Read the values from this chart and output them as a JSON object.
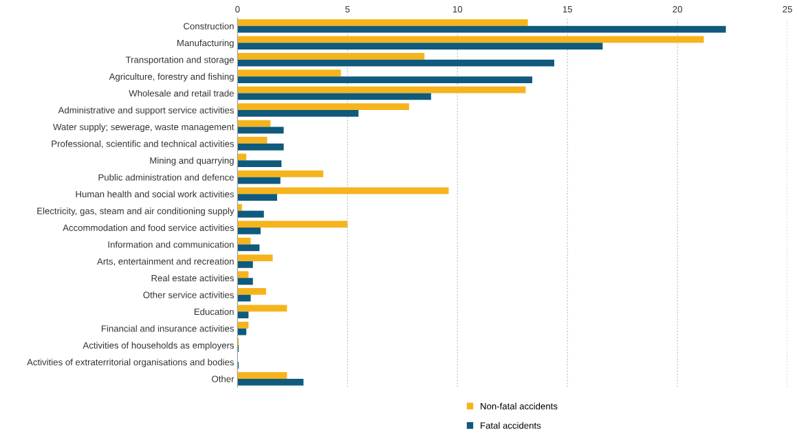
{
  "chart_data": {
    "type": "bar",
    "orientation": "horizontal",
    "categories": [
      "Construction",
      "Manufacturing",
      "Transportation and storage",
      "Agriculture, forestry and fishing",
      "Wholesale and retail trade",
      "Administrative and support service activities",
      "Water supply; sewerage, waste management",
      "Professional, scientific and technical activities",
      "Mining and quarrying",
      "Public administration and defence",
      "Human health and social work activities",
      "Electricity, gas, steam and air conditioning supply",
      "Accommodation and food service activities",
      "Information and communication",
      "Arts, entertainment and recreation",
      "Real estate activities",
      "Other service activities",
      "Education",
      "Financial and insurance activities",
      "Activities of households as employers",
      "Activities of extraterritorial organisations and bodies",
      "Other"
    ],
    "series": [
      {
        "name": "Non-fatal accidents",
        "color": "#f6b41c",
        "values": [
          13.2,
          21.2,
          8.5,
          4.7,
          13.1,
          7.8,
          1.5,
          1.35,
          0.4,
          3.9,
          9.6,
          0.2,
          5.0,
          0.6,
          1.6,
          0.5,
          1.3,
          2.25,
          0.5,
          0.06,
          null,
          2.25
        ]
      },
      {
        "name": "Fatal accidents",
        "color": "#0f5a7d",
        "values": [
          22.2,
          16.6,
          14.4,
          13.4,
          8.8,
          5.5,
          2.1,
          2.1,
          2.0,
          1.95,
          1.8,
          1.2,
          1.05,
          1.0,
          0.7,
          0.7,
          0.6,
          0.5,
          0.4,
          0.05,
          0.05,
          3.0
        ]
      }
    ],
    "xlim": [
      0,
      25
    ],
    "xticks": [
      0,
      5,
      10,
      15,
      20,
      25
    ],
    "grid": "x",
    "legend": "bottom"
  }
}
